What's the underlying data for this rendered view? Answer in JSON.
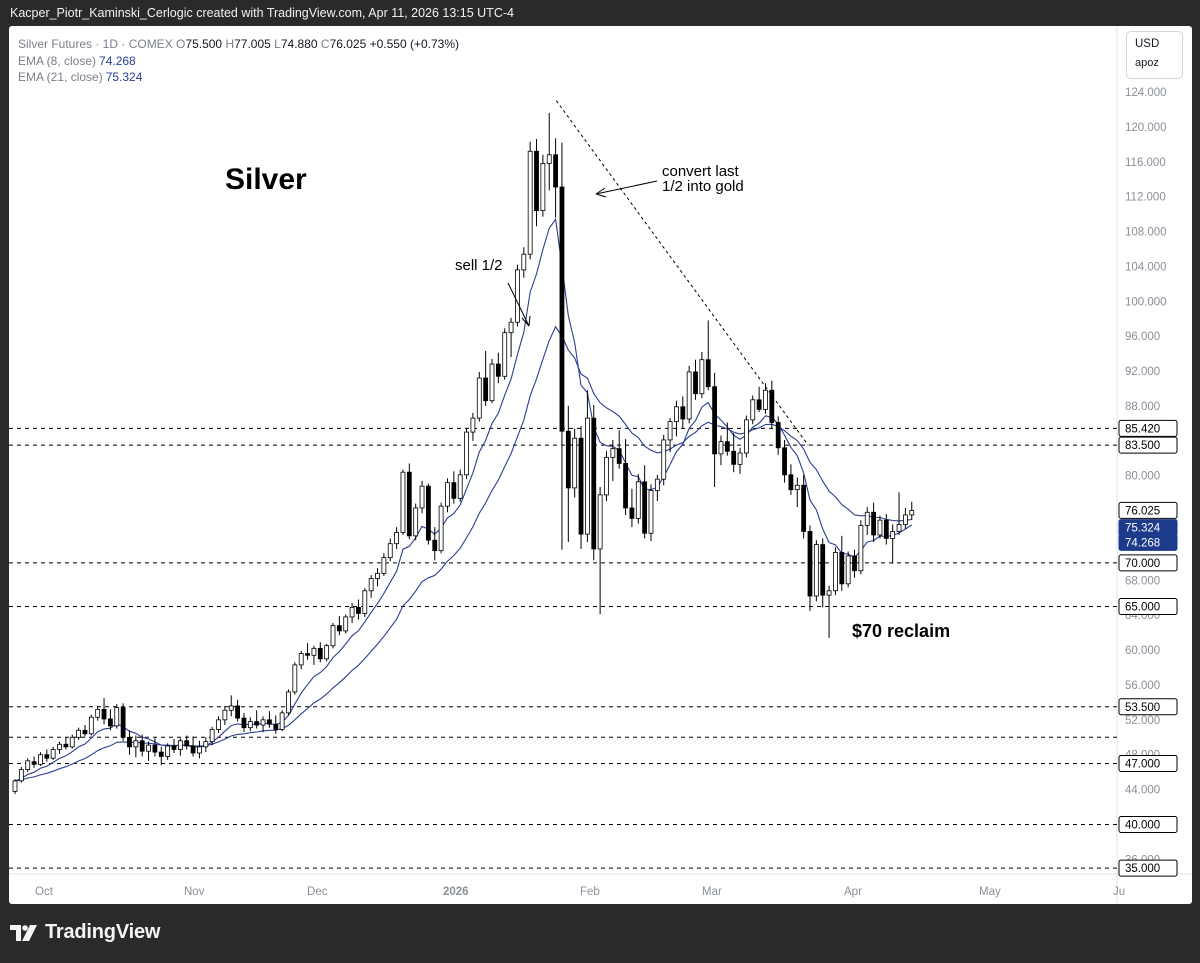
{
  "header": {
    "caption": "Kacper_Piotr_Kaminski_Cerlogic created with TradingView.com, Apr 11, 2026 13:15 UTC-4"
  },
  "legend": {
    "symbol": "Silver Futures · 1D · COMEX",
    "open_label": "O",
    "open": "75.500",
    "high_label": "H",
    "high": "77.005",
    "low_label": "L",
    "low": "74.880",
    "close_label": "C",
    "close": "76.025",
    "change": "+0.550 (+0.73%)",
    "ema8_label": "EMA (8, close)",
    "ema8_value": "74.268",
    "ema21_label": "EMA (21, close)",
    "ema21_value": "75.324"
  },
  "currency_box": {
    "currency": "USD",
    "user": "apoz"
  },
  "footer": {
    "brand": "TradingView"
  },
  "chart_data": {
    "type": "candlestick",
    "title": "Silver",
    "annotations": [
      "sell 1/2",
      "convert last 1/2 into gold",
      "$70 reclaim"
    ],
    "ylim": [
      34,
      126
    ],
    "y_ticks": [
      "124.000",
      "120.000",
      "116.000",
      "112.000",
      "108.000",
      "104.000",
      "100.000",
      "96.000",
      "92.000",
      "88.000",
      "84.000",
      "80.000",
      "76.000",
      "72.000",
      "68.000",
      "64.000",
      "60.000",
      "56.000",
      "52.000",
      "48.000",
      "44.000",
      "40.000",
      "36.000"
    ],
    "x_ticks": [
      "Oct",
      "Nov",
      "Dec",
      "2026",
      "Feb",
      "Mar",
      "Apr",
      "May",
      "Ju"
    ],
    "horizontal_levels": [
      85.42,
      83.5,
      70,
      65,
      53.5,
      50,
      47,
      40,
      35
    ],
    "level_labels": [
      "85.420",
      "83.500",
      "70.000",
      "65.000",
      "53.500",
      "47.000",
      "40.000",
      "35.000"
    ],
    "price_labels": {
      "close": "76.025",
      "ema21": "75.324",
      "ema8": "74.268"
    },
    "colors": {
      "ema8": "#2a3f8f",
      "ema21": "#2a3f8f",
      "up_candle_fill": "#ffffff",
      "down_candle_fill": "#000000",
      "candle_outline": "#000000",
      "level_line": "#000000",
      "label_highlight": "#1e3a8a"
    },
    "trendline": {
      "from": [
        "Jan 30",
        123
      ],
      "to": [
        "Mar 18",
        83.5
      ]
    },
    "candles": [
      [
        43.8,
        45.2,
        43.5,
        45
      ],
      [
        45,
        46.6,
        44.8,
        46.3
      ],
      [
        46.3,
        47.6,
        46,
        47.3
      ],
      [
        47.2,
        47.8,
        46.5,
        46.9
      ],
      [
        46.9,
        48.3,
        46.7,
        48
      ],
      [
        48,
        48.6,
        47.2,
        47.6
      ],
      [
        47.6,
        48.9,
        47.4,
        48.6
      ],
      [
        48.6,
        49.5,
        48.1,
        49.2
      ],
      [
        49.2,
        50,
        48.6,
        48.9
      ],
      [
        48.9,
        50.3,
        48.7,
        50
      ],
      [
        50,
        51.1,
        49.7,
        50.8
      ],
      [
        50.8,
        51.4,
        50.1,
        50.4
      ],
      [
        50.4,
        52.6,
        50.2,
        52.3
      ],
      [
        52.3,
        53.6,
        51.9,
        53.2
      ],
      [
        53.2,
        54.5,
        51.5,
        52.1
      ],
      [
        52.1,
        53.2,
        50.8,
        51.3
      ],
      [
        51.3,
        53.8,
        51,
        53.4
      ],
      [
        53.4,
        53.9,
        49.6,
        50
      ],
      [
        50,
        50.8,
        48,
        48.9
      ],
      [
        48.9,
        50.2,
        47.7,
        49.6
      ],
      [
        49.6,
        50.3,
        47.8,
        48.4
      ],
      [
        48.4,
        49.5,
        47.3,
        49.1
      ],
      [
        49.1,
        49.9,
        47.8,
        48.3
      ],
      [
        48.3,
        48.9,
        46.8,
        47.8
      ],
      [
        47.8,
        49.3,
        47.4,
        49
      ],
      [
        49,
        49.8,
        48.2,
        48.6
      ],
      [
        48.6,
        49.9,
        47.9,
        49.6
      ],
      [
        49.6,
        50.2,
        48.6,
        49
      ],
      [
        49,
        50.1,
        47.8,
        48.2
      ],
      [
        48.2,
        49.6,
        47.6,
        48.9
      ],
      [
        48.9,
        50,
        48.3,
        49.5
      ],
      [
        49.5,
        51.2,
        49.1,
        50.9
      ],
      [
        50.9,
        52.4,
        50.5,
        52
      ],
      [
        52,
        53.6,
        51.4,
        53.1
      ],
      [
        53.1,
        54.8,
        52.4,
        53.6
      ],
      [
        53.6,
        54.3,
        51.8,
        52.2
      ],
      [
        52.2,
        52.8,
        50.6,
        51.1
      ],
      [
        51.1,
        52.3,
        50.7,
        51.8
      ],
      [
        51.8,
        53.1,
        51,
        51.4
      ],
      [
        51.4,
        52.4,
        50.6,
        52
      ],
      [
        52,
        53,
        51.1,
        51.5
      ],
      [
        51.5,
        52.5,
        50.4,
        50.9
      ],
      [
        50.9,
        53.1,
        50.7,
        52.8
      ],
      [
        52.8,
        55.5,
        52.5,
        55.2
      ],
      [
        55.2,
        58.6,
        54.9,
        58.3
      ],
      [
        58.3,
        59.9,
        57.8,
        59.6
      ],
      [
        59.6,
        60.8,
        58.9,
        59.4
      ],
      [
        59.4,
        60.5,
        58.3,
        60.2
      ],
      [
        60.2,
        60.9,
        58.6,
        59
      ],
      [
        59,
        60.7,
        58.7,
        60.5
      ],
      [
        60.5,
        63.1,
        60.2,
        62.8
      ],
      [
        62.8,
        63.9,
        61.7,
        62.2
      ],
      [
        62.2,
        64.1,
        61.9,
        63.8
      ],
      [
        63.8,
        65.4,
        63.1,
        64.9
      ],
      [
        64.9,
        65.8,
        63.5,
        64.2
      ],
      [
        64.2,
        67.1,
        63.8,
        66.8
      ],
      [
        66.8,
        68.6,
        66,
        68.2
      ],
      [
        68.2,
        69.4,
        67.3,
        68.8
      ],
      [
        68.8,
        71.1,
        68.5,
        70.6
      ],
      [
        70.6,
        72.8,
        70.2,
        72.2
      ],
      [
        72.2,
        74.1,
        71.6,
        73.5
      ],
      [
        73.5,
        80.7,
        73.2,
        80.4
      ],
      [
        80.4,
        81.4,
        72.7,
        73.1
      ],
      [
        73.1,
        76.8,
        72.6,
        76.3
      ],
      [
        76.3,
        79.4,
        75.7,
        78.8
      ],
      [
        78.8,
        79.1,
        72.1,
        72.6
      ],
      [
        72.6,
        74.1,
        70.3,
        71.4
      ],
      [
        71.4,
        76.9,
        71.1,
        76.5
      ],
      [
        76.5,
        79.7,
        75.8,
        79.2
      ],
      [
        79.2,
        80.5,
        76.8,
        77.4
      ],
      [
        77.4,
        80.7,
        77,
        80.1
      ],
      [
        80.1,
        85.5,
        79.6,
        85
      ],
      [
        85,
        87.2,
        84,
        86.6
      ],
      [
        86.6,
        91.9,
        86.2,
        91.2
      ],
      [
        91.2,
        94.3,
        88,
        88.6
      ],
      [
        88.6,
        93.4,
        88.3,
        92.8
      ],
      [
        92.8,
        94.1,
        90.6,
        91.4
      ],
      [
        91.4,
        96.9,
        91,
        96.4
      ],
      [
        96.4,
        98.1,
        93.6,
        97.6
      ],
      [
        97.6,
        104.2,
        97.1,
        103.6
      ],
      [
        103.6,
        106.2,
        102.7,
        105.4
      ],
      [
        105.4,
        118.3,
        104.8,
        117.2
      ],
      [
        117.2,
        118.6,
        108.6,
        110.4
      ],
      [
        110.4,
        116.8,
        109.7,
        115.8
      ],
      [
        115.8,
        121.6,
        112.7,
        116.8
      ],
      [
        116.8,
        118.7,
        109.6,
        113.1
      ],
      [
        113.1,
        118.2,
        71.5,
        85.1
      ],
      [
        85.1,
        88,
        72.4,
        78.6
      ],
      [
        78.6,
        85.4,
        77.5,
        84.3
      ],
      [
        84.3,
        85.7,
        71.6,
        73.3
      ],
      [
        73.3,
        89.8,
        72.4,
        86.6
      ],
      [
        86.6,
        88.1,
        70.3,
        71.6
      ],
      [
        71.6,
        78.7,
        64.1,
        77.8
      ],
      [
        77.8,
        82.8,
        77.1,
        82.1
      ],
      [
        82.1,
        84.1,
        79.4,
        83.1
      ],
      [
        83.1,
        85.2,
        80.8,
        81.4
      ],
      [
        81.4,
        84.2,
        75.5,
        76.3
      ],
      [
        76.3,
        78.5,
        74.1,
        75.1
      ],
      [
        75.1,
        80.2,
        74.5,
        79.3
      ],
      [
        79.3,
        81.2,
        72.8,
        73.4
      ],
      [
        73.4,
        79,
        72.5,
        78.3
      ],
      [
        78.3,
        80.1,
        77.1,
        79.6
      ],
      [
        79.6,
        84.7,
        78.9,
        84.1
      ],
      [
        84.1,
        86.6,
        82.7,
        86.2
      ],
      [
        86.2,
        88.6,
        84.5,
        87.9
      ],
      [
        87.9,
        89.1,
        85.4,
        86.5
      ],
      [
        86.5,
        92.6,
        86,
        91.9
      ],
      [
        91.9,
        93.3,
        88.7,
        89.4
      ],
      [
        89.4,
        94.2,
        88.9,
        93.3
      ],
      [
        93.3,
        97.8,
        89.8,
        90.2
      ],
      [
        90.2,
        91.8,
        78.7,
        82.5
      ],
      [
        82.5,
        84.6,
        81.2,
        83.9
      ],
      [
        83.9,
        86.1,
        82.3,
        82.8
      ],
      [
        82.8,
        84.9,
        80.4,
        81.3
      ],
      [
        81.3,
        83.2,
        80.2,
        82.6
      ],
      [
        82.6,
        86.9,
        82.1,
        86.4
      ],
      [
        86.4,
        89.2,
        85.9,
        88.7
      ],
      [
        88.7,
        90.2,
        87.3,
        87.6
      ],
      [
        87.6,
        90.6,
        87.1,
        89.8
      ],
      [
        89.8,
        90.9,
        85.4,
        86.1
      ],
      [
        86.1,
        86.8,
        82.4,
        83.2
      ],
      [
        83.2,
        84.1,
        79.2,
        80.1
      ],
      [
        80.1,
        81.3,
        77.8,
        78.4
      ],
      [
        78.4,
        79.8,
        76.4,
        78.9
      ],
      [
        78.9,
        80.1,
        72.8,
        73.6
      ],
      [
        73.6,
        74.3,
        64.5,
        66.2
      ],
      [
        66.2,
        72.6,
        65.6,
        72.1
      ],
      [
        72.1,
        72.8,
        64.9,
        66.3
      ],
      [
        66.3,
        67.4,
        61.4,
        66.8
      ],
      [
        66.8,
        71.8,
        66.3,
        71.2
      ],
      [
        71.2,
        73.1,
        66.8,
        67.6
      ],
      [
        67.6,
        71.3,
        67.2,
        70.8
      ],
      [
        70.8,
        71.5,
        68.3,
        69.1
      ],
      [
        69.1,
        74.9,
        68.7,
        74.3
      ],
      [
        74.3,
        76.4,
        73.2,
        75.8
      ],
      [
        75.8,
        76.9,
        72.4,
        73.2
      ],
      [
        73.2,
        75.4,
        72.8,
        74.9
      ],
      [
        74.9,
        75.6,
        72.1,
        72.8
      ],
      [
        72.8,
        74.4,
        69.9,
        73.6
      ],
      [
        73.6,
        78.1,
        73.2,
        74.4
      ],
      [
        74.4,
        76.3,
        73.9,
        75.5
      ],
      [
        75.5,
        77,
        74.9,
        76
      ]
    ]
  }
}
